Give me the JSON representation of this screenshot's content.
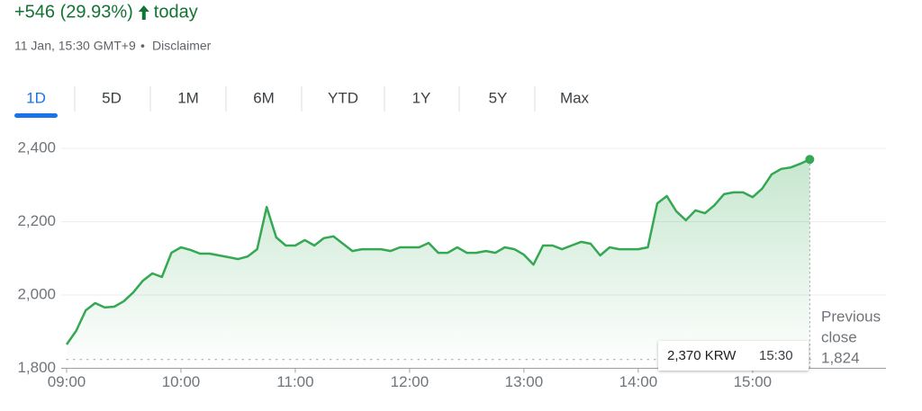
{
  "header": {
    "change": "+546 (29.93%)",
    "period": "today",
    "timestamp": "11 Jan, 15:30 GMT+9",
    "separator": "•",
    "disclaimer": "Disclaimer"
  },
  "tabs": [
    "1D",
    "5D",
    "1M",
    "6M",
    "YTD",
    "1Y",
    "5Y",
    "Max"
  ],
  "chart_data": {
    "type": "line",
    "color": "#34a853",
    "x": [
      "09:00",
      "09:05",
      "09:10",
      "09:15",
      "09:20",
      "09:25",
      "09:30",
      "09:35",
      "09:40",
      "09:45",
      "09:50",
      "09:55",
      "10:00",
      "10:05",
      "10:10",
      "10:15",
      "10:20",
      "10:25",
      "10:30",
      "10:35",
      "10:40",
      "10:45",
      "10:50",
      "10:55",
      "11:00",
      "11:05",
      "11:10",
      "11:15",
      "11:20",
      "11:25",
      "11:30",
      "11:35",
      "11:40",
      "11:45",
      "11:50",
      "11:55",
      "12:00",
      "12:05",
      "12:10",
      "12:15",
      "12:20",
      "12:25",
      "12:30",
      "12:35",
      "12:40",
      "12:45",
      "12:50",
      "12:55",
      "13:00",
      "13:05",
      "13:10",
      "13:15",
      "13:20",
      "13:25",
      "13:30",
      "13:35",
      "13:40",
      "13:45",
      "13:50",
      "13:55",
      "14:00",
      "14:05",
      "14:10",
      "14:15",
      "14:20",
      "14:25",
      "14:30",
      "14:35",
      "14:40",
      "14:45",
      "14:50",
      "14:55",
      "15:00",
      "15:05",
      "15:10",
      "15:15",
      "15:20",
      "15:25",
      "15:30"
    ],
    "values": [
      1865,
      1902,
      1958,
      1978,
      1966,
      1968,
      1983,
      2007,
      2039,
      2059,
      2049,
      2115,
      2130,
      2123,
      2113,
      2113,
      2108,
      2103,
      2098,
      2105,
      2125,
      2240,
      2157,
      2135,
      2135,
      2150,
      2135,
      2155,
      2160,
      2140,
      2120,
      2125,
      2125,
      2125,
      2120,
      2130,
      2130,
      2130,
      2142,
      2115,
      2115,
      2130,
      2115,
      2115,
      2120,
      2115,
      2130,
      2125,
      2110,
      2083,
      2135,
      2135,
      2125,
      2135,
      2145,
      2140,
      2108,
      2130,
      2125,
      2125,
      2125,
      2130,
      2250,
      2270,
      2228,
      2204,
      2231,
      2223,
      2245,
      2275,
      2280,
      2280,
      2267,
      2290,
      2329,
      2344,
      2348,
      2358,
      2370
    ],
    "xlim": [
      "09:00",
      "16:10"
    ],
    "xticks": [
      "09:00",
      "10:00",
      "11:00",
      "12:00",
      "13:00",
      "14:00",
      "15:00"
    ],
    "ylim": [
      1800,
      2400
    ],
    "yticks": [
      {
        "value": 1800,
        "label": "1,800"
      },
      {
        "value": 2000,
        "label": "2,000"
      },
      {
        "value": 2200,
        "label": "2,200"
      },
      {
        "value": 2400,
        "label": "2,400"
      }
    ],
    "grid": true,
    "tooltip_label": "2,370 KRW",
    "reference_line": {
      "label_lines": [
        "Previous",
        "close"
      ],
      "value": 1824,
      "value_label": "1,824"
    }
  }
}
